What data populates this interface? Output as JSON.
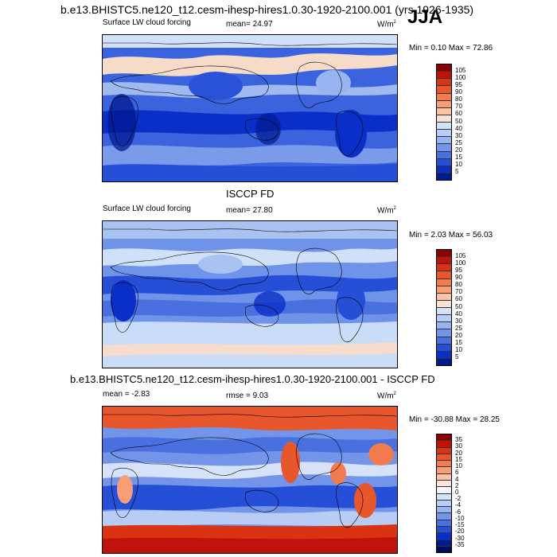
{
  "header": {
    "title": "b.e13.BHISTC5.ne120_t12.cesm-ihesp-hires1.0.30-1920-2100.001 (yrs 1926-1935)",
    "season": "JJA"
  },
  "panels": [
    {
      "section_title": "",
      "label_left": "Surface LW cloud forcing",
      "stat_text": "mean=  24.97",
      "units_base": "W/m",
      "units_exp": "2",
      "min_max": "Min =   0.10 Max =  72.86",
      "levels": [
        "105",
        "100",
        "95",
        "90",
        "80",
        "70",
        "60",
        "50",
        "40",
        "30",
        "25",
        "20",
        "15",
        "10",
        "5"
      ],
      "colors": [
        "#8b0000",
        "#c0120a",
        "#d93314",
        "#e8572b",
        "#f27c4d",
        "#f79e76",
        "#fbc3a6",
        "#f8e2d2",
        "#d2e3f8",
        "#b7cdf5",
        "#97b3f0",
        "#7295ea",
        "#4a70e0",
        "#244fd6",
        "#0a2fc8",
        "#001a90"
      ]
    },
    {
      "section_title": "ISCCP FD",
      "label_left": "Surface LW cloud forcing",
      "stat_text": "mean=  27.80",
      "units_base": "W/m",
      "units_exp": "2",
      "min_max": "Min =   2.03 Max =  56.03",
      "levels": [
        "105",
        "100",
        "95",
        "90",
        "80",
        "70",
        "60",
        "50",
        "40",
        "30",
        "25",
        "20",
        "15",
        "10",
        "5"
      ],
      "colors": [
        "#8b0000",
        "#c0120a",
        "#d93314",
        "#e8572b",
        "#f27c4d",
        "#f79e76",
        "#fbc3a6",
        "#f8e2d2",
        "#d2e3f8",
        "#b7cdf5",
        "#97b3f0",
        "#7295ea",
        "#4a70e0",
        "#244fd6",
        "#0a2fc8",
        "#001a90"
      ]
    },
    {
      "section_title": "b.e13.BHISTC5.ne120_t12.cesm-ihesp-hires1.0.30-1920-2100.001 - ISCCP FD",
      "label_left": "mean =  -2.83",
      "stat_text": "rmse =   9.03",
      "units_base": "W/m",
      "units_exp": "2",
      "min_max": "Min = -30.88 Max =  28.25",
      "levels": [
        "35",
        "30",
        "20",
        "15",
        "10",
        "6",
        "4",
        "2",
        "0",
        "-2",
        "-4",
        "-6",
        "-10",
        "-15",
        "-20",
        "-30",
        "-35"
      ],
      "colors": [
        "#8b0000",
        "#c0120a",
        "#d93314",
        "#e8572b",
        "#f27c4d",
        "#f79e76",
        "#fbc3a6",
        "#fde5d8",
        "#f5f5ff",
        "#d6e2fa",
        "#b7cdf5",
        "#97b3f0",
        "#7295ea",
        "#4a70e0",
        "#244fd6",
        "#0a2fc8",
        "#001a90",
        "#000a60"
      ]
    }
  ]
}
